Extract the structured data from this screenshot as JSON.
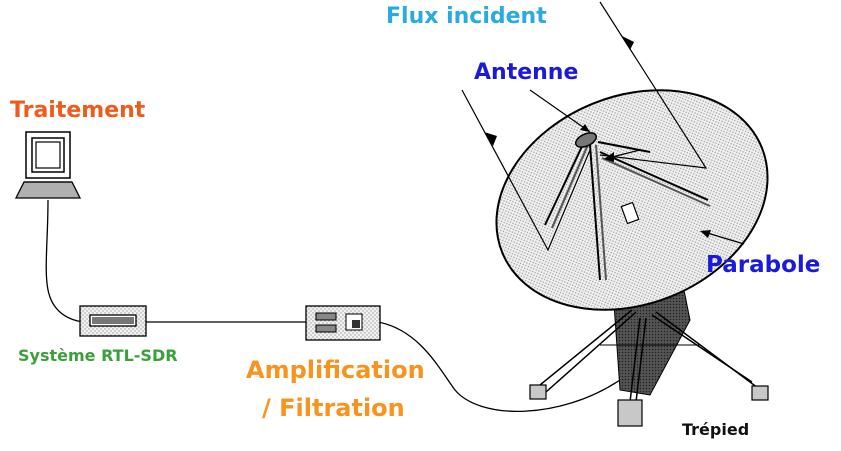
{
  "labels": {
    "flux": "Flux incident",
    "antenne": "Antenne",
    "traitement": "Traitement",
    "parabole": "Parabole",
    "rtl_sdr": "Système RTL-SDR",
    "amplification": "Amplification",
    "filtration": "/ Filtration",
    "trepied": "Trépied"
  },
  "colors": {
    "flux": "#29abe2",
    "antenne": "#1a1adb",
    "traitement": "#f05a1a",
    "parabole": "#1a1adb",
    "rtl_sdr": "#3aa03a",
    "amplification": "#f7931e",
    "trepied": "#111111"
  }
}
